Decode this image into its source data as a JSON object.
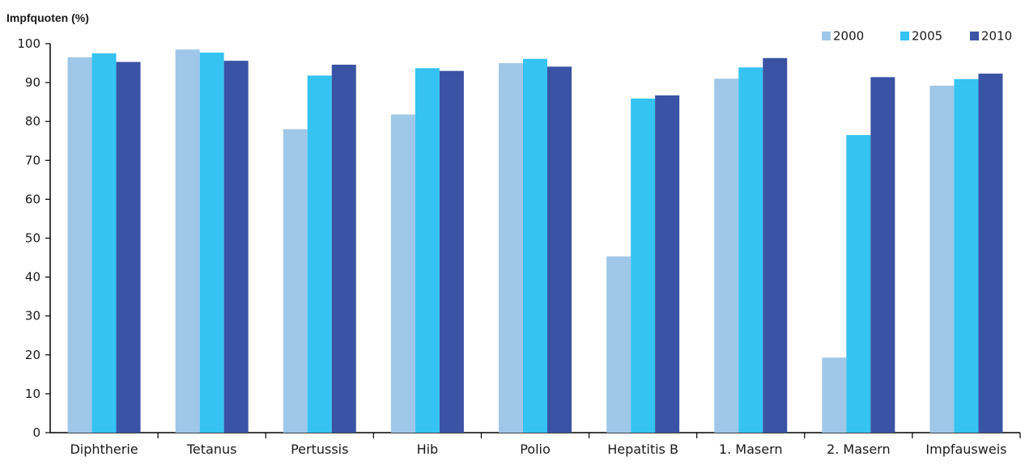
{
  "chart_data": {
    "type": "bar",
    "title": "",
    "xlabel": "",
    "ylabel": "Impfquoten (%)",
    "ylim": [
      0,
      100
    ],
    "yticks": [
      0,
      10,
      20,
      30,
      40,
      50,
      60,
      70,
      80,
      90,
      100
    ],
    "grid": false,
    "legend_position": "top-right",
    "categories": [
      "Diphtherie",
      "Tetanus",
      "Pertussis",
      "Hib",
      "Polio",
      "Hepatitis B",
      "1. Masern",
      "2. Masern",
      "Impfausweis"
    ],
    "series": [
      {
        "name": "2000",
        "color": "#9fc7e8",
        "values": [
          96.5,
          98.5,
          78.0,
          81.8,
          95.0,
          45.3,
          91.0,
          19.3,
          89.2
        ]
      },
      {
        "name": "2005",
        "color": "#35c3f2",
        "values": [
          97.5,
          97.7,
          91.8,
          93.7,
          96.1,
          85.9,
          93.9,
          76.5,
          90.9
        ]
      },
      {
        "name": "2010",
        "color": "#3a53a4",
        "values": [
          95.3,
          95.6,
          94.6,
          93.0,
          94.1,
          86.7,
          96.3,
          91.4,
          92.3
        ]
      }
    ]
  }
}
